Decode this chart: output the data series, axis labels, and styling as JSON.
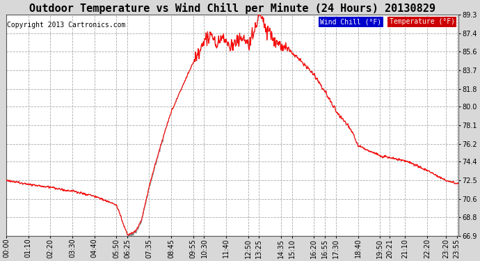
{
  "title": "Outdoor Temperature vs Wind Chill per Minute (24 Hours) 20130829",
  "copyright": "Copyright 2013 Cartronics.com",
  "legend_wind_chill": "Wind Chill (°F)",
  "legend_temperature": "Temperature (°F)",
  "ylabel_right_ticks": [
    66.9,
    68.8,
    70.6,
    72.5,
    74.4,
    76.2,
    78.1,
    80.0,
    81.8,
    83.7,
    85.6,
    87.4,
    89.3
  ],
  "ylim": [
    66.9,
    89.3
  ],
  "background_color": "#d8d8d8",
  "plot_bg_color": "#ffffff",
  "line_color_temp": "#ff0000",
  "line_color_windchill": "#888888",
  "grid_color": "#aaaaaa",
  "title_fontsize": 11,
  "copyright_fontsize": 7,
  "tick_fontsize": 7,
  "xtick_labels": [
    "00:00",
    "01:10",
    "02:20",
    "03:30",
    "04:40",
    "05:50",
    "06:25",
    "07:35",
    "08:45",
    "09:55",
    "10:30",
    "11:40",
    "12:50",
    "13:25",
    "14:35",
    "15:10",
    "16:20",
    "16:55",
    "17:30",
    "18:40",
    "19:50",
    "20:21",
    "21:10",
    "22:20",
    "23:20",
    "23:55"
  ],
  "xtick_minutes": [
    0,
    70,
    140,
    210,
    280,
    350,
    385,
    455,
    525,
    595,
    630,
    700,
    770,
    805,
    875,
    910,
    980,
    1015,
    1050,
    1120,
    1190,
    1221,
    1270,
    1340,
    1400,
    1435
  ]
}
